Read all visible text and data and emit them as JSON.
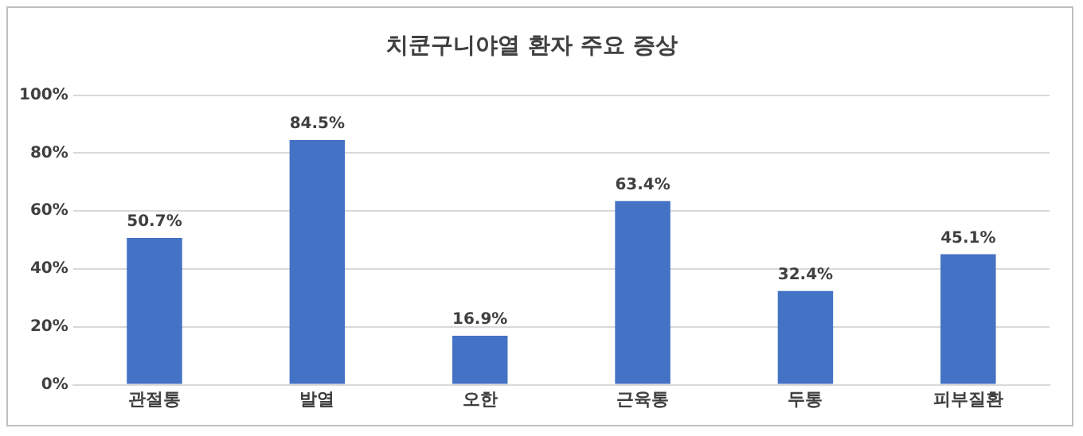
{
  "chart_data": {
    "type": "bar",
    "title": "치쿤구니야열 환자 주요 증상",
    "categories": [
      "관절통",
      "발열",
      "오한",
      "근육통",
      "두통",
      "피부질환"
    ],
    "values": [
      50.7,
      84.5,
      16.9,
      63.4,
      32.4,
      45.1
    ],
    "value_labels": [
      "50.7%",
      "84.5%",
      "16.9%",
      "63.4%",
      "32.4%",
      "45.1%"
    ],
    "color": "#4472c4",
    "ylim": [
      0,
      100
    ],
    "yticks": [
      {
        "value": 0,
        "label": "0%"
      },
      {
        "value": 20,
        "label": "20%"
      },
      {
        "value": 40,
        "label": "40%"
      },
      {
        "value": 60,
        "label": "60%"
      },
      {
        "value": 80,
        "label": "80%"
      },
      {
        "value": 100,
        "label": "100%"
      }
    ],
    "grid": "y",
    "legend": false
  }
}
